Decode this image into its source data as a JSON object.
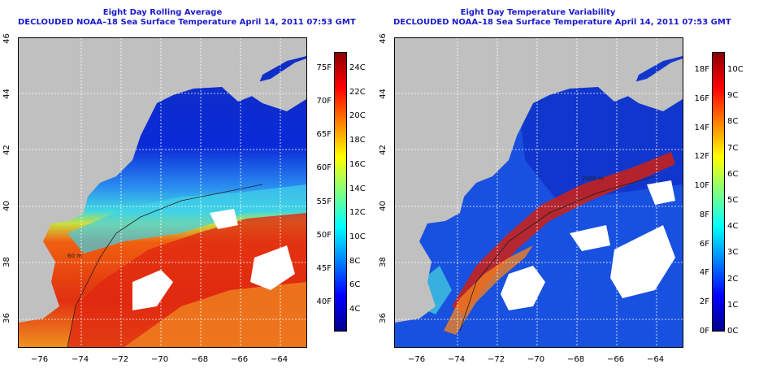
{
  "panels": [
    {
      "title": "Eight Day Rolling Average",
      "subtitle": "DECLOUDED NOAA–18 Sea Surface Temperature April 14, 2011 07:53 GMT",
      "x_ticks": [
        "−76",
        "−74",
        "−72",
        "−70",
        "−68",
        "−66",
        "−64"
      ],
      "y_ticks": [
        "46",
        "44",
        "42",
        "40",
        "38",
        "36"
      ],
      "colorbar": {
        "left_labels": [
          "75F",
          "70F",
          "65F",
          "60F",
          "55F",
          "50F",
          "45F",
          "40F"
        ],
        "right_labels": [
          "24C",
          "22C",
          "20C",
          "18C",
          "16C",
          "14C",
          "12C",
          "10C",
          "8C",
          "6C",
          "4C"
        ],
        "colors": [
          "#00008b",
          "#0000ff",
          "#0080ff",
          "#00ffff",
          "#80ff80",
          "#ffff00",
          "#ff8000",
          "#ff0000",
          "#8b0000"
        ]
      }
    },
    {
      "title": "Eight Day Temperature Variability",
      "subtitle": "DECLOUDED NOAA–18 Sea Surface Temperature April 14, 2011 07:53 GMT",
      "x_ticks": [
        "−76",
        "−74",
        "−72",
        "−70",
        "−68",
        "−66",
        "−64"
      ],
      "y_ticks": [
        "46",
        "44",
        "42",
        "40",
        "38",
        "36"
      ],
      "colorbar": {
        "left_labels": [
          "18F",
          "16F",
          "14F",
          "12F",
          "10F",
          "8F",
          "6F",
          "4F",
          "2F",
          "0F"
        ],
        "right_labels": [
          "10C",
          "9C",
          "8C",
          "7C",
          "6C",
          "5C",
          "4C",
          "3C",
          "2C",
          "1C",
          "0C"
        ],
        "colors": [
          "#00008b",
          "#0000ff",
          "#0080ff",
          "#00ffff",
          "#80ff80",
          "#ffff00",
          "#ff8000",
          "#ff0000",
          "#8b0000"
        ]
      }
    }
  ],
  "map_colors": {
    "land": "#c0c0c0",
    "cloud": "#ffffff"
  },
  "contour_labels": [
    "60 m",
    "2000 m"
  ]
}
